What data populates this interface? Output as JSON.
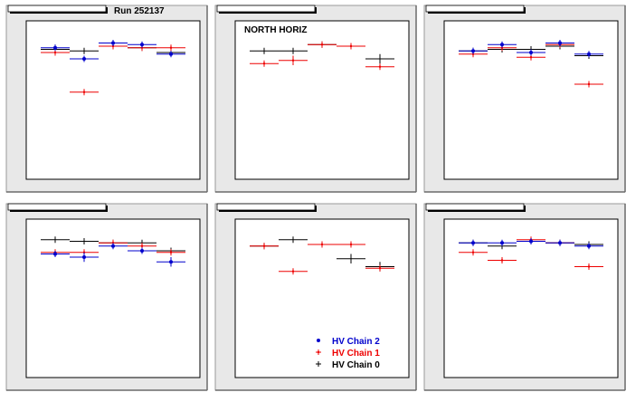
{
  "run_label": "Run 252137",
  "section_label": "NORTH HORIZ",
  "colors": {
    "chain0": "#000000",
    "chain1": "#ee0000",
    "chain2": "#0000cc",
    "pad_fill": "#e8e8e8",
    "frame_fill": "#ffffff"
  },
  "legend": {
    "entries": [
      {
        "label": "HV Chain 2",
        "series": "chain2"
      },
      {
        "label": "HV Chain 1",
        "series": "chain1"
      },
      {
        "label": "HV Chain 0",
        "series": "chain0"
      }
    ]
  },
  "chart_data": [
    {
      "type": "scatter",
      "title": "",
      "xlim": [
        0,
        6
      ],
      "ylim": [
        0,
        1
      ],
      "series": [
        {
          "key": "chain0",
          "x": [
            1,
            2,
            3,
            4,
            5
          ],
          "y": [
            0.82,
            0.81,
            0.84,
            0.83,
            0.8
          ],
          "err": [
            0.03,
            0.02,
            0.02,
            0.02,
            0.02
          ]
        },
        {
          "key": "chain1",
          "x": [
            1,
            2,
            3,
            4,
            5
          ],
          "y": [
            0.8,
            0.55,
            0.84,
            0.83,
            0.83
          ],
          "err": [
            0.02,
            0.02,
            0.02,
            0.02,
            0.02
          ]
        },
        {
          "key": "chain2",
          "x": [
            1,
            2,
            3,
            4,
            5
          ],
          "y": [
            0.83,
            0.76,
            0.86,
            0.85,
            0.79
          ],
          "err": [
            0.02,
            0.02,
            0.02,
            0.02,
            0.02
          ]
        }
      ]
    },
    {
      "type": "scatter",
      "title": "",
      "xlim": [
        0,
        6
      ],
      "ylim": [
        0,
        1
      ],
      "series": [
        {
          "key": "chain0",
          "x": [
            1,
            2,
            3,
            4,
            5
          ],
          "y": [
            0.81,
            0.81,
            0.85,
            0.84,
            0.76
          ],
          "err": [
            0.02,
            0.02,
            0.02,
            0.02,
            0.03
          ]
        },
        {
          "key": "chain1",
          "x": [
            1,
            2,
            3,
            4,
            5
          ],
          "y": [
            0.73,
            0.75,
            0.85,
            0.84,
            0.71
          ],
          "err": [
            0.02,
            0.03,
            0.02,
            0.02,
            0.02
          ]
        }
      ]
    },
    {
      "type": "scatter",
      "title": "",
      "xlim": [
        0,
        6
      ],
      "ylim": [
        0,
        1
      ],
      "series": [
        {
          "key": "chain0",
          "x": [
            1,
            2,
            3,
            4,
            5
          ],
          "y": [
            0.81,
            0.82,
            0.82,
            0.84,
            0.78
          ],
          "err": [
            0.02,
            0.02,
            0.02,
            0.02,
            0.02
          ]
        },
        {
          "key": "chain1",
          "x": [
            1,
            2,
            3,
            4,
            5
          ],
          "y": [
            0.79,
            0.83,
            0.77,
            0.85,
            0.6
          ],
          "err": [
            0.02,
            0.02,
            0.02,
            0.02,
            0.02
          ]
        },
        {
          "key": "chain2",
          "x": [
            1,
            2,
            3,
            4,
            5
          ],
          "y": [
            0.81,
            0.85,
            0.8,
            0.86,
            0.79
          ],
          "err": [
            0.02,
            0.02,
            0.02,
            0.02,
            0.02
          ]
        }
      ]
    },
    {
      "type": "scatter",
      "title": "",
      "xlim": [
        0,
        6
      ],
      "ylim": [
        0,
        1
      ],
      "series": [
        {
          "key": "chain0",
          "x": [
            1,
            2,
            3,
            4,
            5
          ],
          "y": [
            0.87,
            0.86,
            0.85,
            0.85,
            0.8
          ],
          "err": [
            0.02,
            0.02,
            0.02,
            0.02,
            0.02
          ]
        },
        {
          "key": "chain1",
          "x": [
            1,
            2,
            3,
            4,
            5
          ],
          "y": [
            0.79,
            0.79,
            0.85,
            0.83,
            0.79
          ],
          "err": [
            0.02,
            0.02,
            0.02,
            0.02,
            0.02
          ]
        },
        {
          "key": "chain2",
          "x": [
            1,
            2,
            3,
            4,
            5
          ],
          "y": [
            0.78,
            0.76,
            0.83,
            0.8,
            0.73
          ],
          "err": [
            0.02,
            0.03,
            0.02,
            0.02,
            0.03
          ]
        }
      ]
    },
    {
      "type": "scatter",
      "title": "",
      "xlim": [
        0,
        6
      ],
      "ylim": [
        0,
        1
      ],
      "series": [
        {
          "key": "chain0",
          "x": [
            1,
            2,
            3,
            4,
            5
          ],
          "y": [
            0.83,
            0.87,
            0.84,
            0.75,
            0.7
          ],
          "err": [
            0.02,
            0.02,
            0.02,
            0.03,
            0.03
          ]
        },
        {
          "key": "chain1",
          "x": [
            1,
            2,
            3,
            4,
            5
          ],
          "y": [
            0.83,
            0.67,
            0.84,
            0.84,
            0.69
          ],
          "err": [
            0.02,
            0.02,
            0.02,
            0.02,
            0.02
          ]
        }
      ],
      "legend_position": "bottom-right"
    },
    {
      "type": "scatter",
      "title": "",
      "xlim": [
        0,
        6
      ],
      "ylim": [
        0,
        1
      ],
      "series": [
        {
          "key": "chain0",
          "x": [
            1,
            2,
            3,
            4,
            5
          ],
          "y": [
            0.85,
            0.83,
            0.86,
            0.85,
            0.84
          ],
          "err": [
            0.02,
            0.02,
            0.02,
            0.02,
            0.02
          ]
        },
        {
          "key": "chain1",
          "x": [
            1,
            2,
            3,
            4,
            5
          ],
          "y": [
            0.79,
            0.74,
            0.87,
            0.85,
            0.7
          ],
          "err": [
            0.02,
            0.02,
            0.02,
            0.02,
            0.02
          ]
        },
        {
          "key": "chain2",
          "x": [
            1,
            2,
            3,
            4,
            5
          ],
          "y": [
            0.85,
            0.85,
            0.86,
            0.85,
            0.83
          ],
          "err": [
            0.02,
            0.02,
            0.02,
            0.02,
            0.02
          ]
        }
      ]
    }
  ]
}
